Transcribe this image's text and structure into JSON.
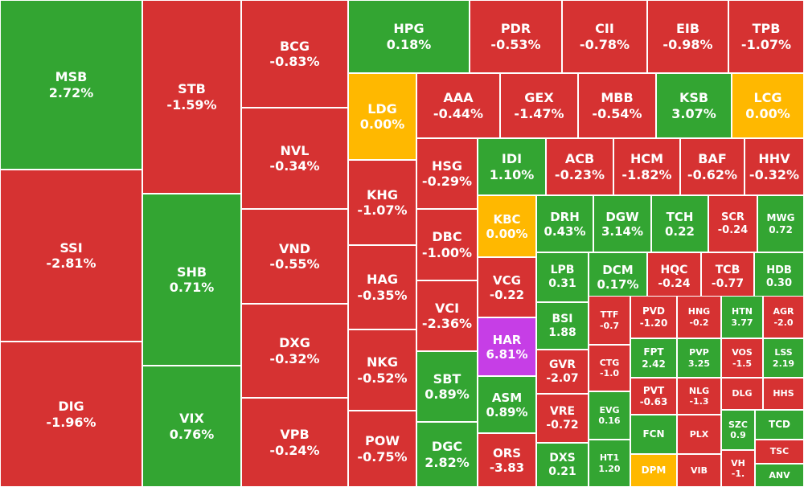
{
  "colors": {
    "up": "#33a532",
    "down": "#d63232",
    "flat": "#ffb800",
    "ceiling": "#c63ee6",
    "border": "#ffffff",
    "text": "#ffffff"
  },
  "chart_data": {
    "type": "treemap",
    "tiles": [
      {
        "ticker": "MSB",
        "change": "2.72%",
        "status": "up"
      },
      {
        "ticker": "SSI",
        "change": "-2.81%",
        "status": "down"
      },
      {
        "ticker": "DIG",
        "change": "-1.96%",
        "status": "down"
      },
      {
        "ticker": "STB",
        "change": "-1.59%",
        "status": "down"
      },
      {
        "ticker": "SHB",
        "change": "0.71%",
        "status": "up"
      },
      {
        "ticker": "VIX",
        "change": "0.76%",
        "status": "up"
      },
      {
        "ticker": "BCG",
        "change": "-0.83%",
        "status": "down"
      },
      {
        "ticker": "NVL",
        "change": "-0.34%",
        "status": "down"
      },
      {
        "ticker": "VND",
        "change": "-0.55%",
        "status": "down"
      },
      {
        "ticker": "DXG",
        "change": "-0.32%",
        "status": "down"
      },
      {
        "ticker": "VPB",
        "change": "-0.24%",
        "status": "down"
      },
      {
        "ticker": "HPG",
        "change": "0.18%",
        "status": "up"
      },
      {
        "ticker": "PDR",
        "change": "-0.53%",
        "status": "down"
      },
      {
        "ticker": "CII",
        "change": "-0.78%",
        "status": "down"
      },
      {
        "ticker": "EIB",
        "change": "-0.98%",
        "status": "down"
      },
      {
        "ticker": "TPB",
        "change": "-1.07%",
        "status": "down"
      },
      {
        "ticker": "LDG",
        "change": "0.00%",
        "status": "flat"
      },
      {
        "ticker": "KHG",
        "change": "-1.07%",
        "status": "down"
      },
      {
        "ticker": "HAG",
        "change": "-0.35%",
        "status": "down"
      },
      {
        "ticker": "NKG",
        "change": "-0.52%",
        "status": "down"
      },
      {
        "ticker": "POW",
        "change": "-0.75%",
        "status": "down"
      },
      {
        "ticker": "AAA",
        "change": "-0.44%",
        "status": "down"
      },
      {
        "ticker": "GEX",
        "change": "-1.47%",
        "status": "down"
      },
      {
        "ticker": "MBB",
        "change": "-0.54%",
        "status": "down"
      },
      {
        "ticker": "KSB",
        "change": "3.07%",
        "status": "up"
      },
      {
        "ticker": "LCG",
        "change": "0.00%",
        "status": "flat"
      },
      {
        "ticker": "HSG",
        "change": "-0.29%",
        "status": "down"
      },
      {
        "ticker": "DBC",
        "change": "-1.00%",
        "status": "down"
      },
      {
        "ticker": "VCI",
        "change": "-2.36%",
        "status": "down"
      },
      {
        "ticker": "SBT",
        "change": "0.89%",
        "status": "up"
      },
      {
        "ticker": "DGC",
        "change": "2.82%",
        "status": "up"
      },
      {
        "ticker": "IDI",
        "change": "1.10%",
        "status": "up"
      },
      {
        "ticker": "ACB",
        "change": "-0.23%",
        "status": "down"
      },
      {
        "ticker": "HCM",
        "change": "-1.82%",
        "status": "down"
      },
      {
        "ticker": "BAF",
        "change": "-0.62%",
        "status": "down"
      },
      {
        "ticker": "HHV",
        "change": "-0.32%",
        "status": "down"
      },
      {
        "ticker": "KBC",
        "change": "0.00%",
        "status": "flat"
      },
      {
        "ticker": "VCG",
        "change": "-0.22",
        "status": "down"
      },
      {
        "ticker": "HAR",
        "change": "6.81%",
        "status": "ceiling"
      },
      {
        "ticker": "ASM",
        "change": "0.89%",
        "status": "up"
      },
      {
        "ticker": "ORS",
        "change": "-3.83",
        "status": "down"
      },
      {
        "ticker": "DRH",
        "change": "0.43%",
        "status": "up"
      },
      {
        "ticker": "DGW",
        "change": "3.14%",
        "status": "up"
      },
      {
        "ticker": "TCH",
        "change": "0.22",
        "status": "up"
      },
      {
        "ticker": "SCR",
        "change": "-0.24",
        "status": "down"
      },
      {
        "ticker": "MWG",
        "change": "0.72",
        "status": "up"
      },
      {
        "ticker": "LPB",
        "change": "0.31",
        "status": "up"
      },
      {
        "ticker": "DCM",
        "change": "0.17%",
        "status": "up"
      },
      {
        "ticker": "HQC",
        "change": "-0.24",
        "status": "down"
      },
      {
        "ticker": "TCB",
        "change": "-0.77",
        "status": "down"
      },
      {
        "ticker": "HDB",
        "change": "0.30",
        "status": "up"
      },
      {
        "ticker": "BSI",
        "change": "1.88",
        "status": "up"
      },
      {
        "ticker": "GVR",
        "change": "-2.07",
        "status": "down"
      },
      {
        "ticker": "VRE",
        "change": "-0.72",
        "status": "down"
      },
      {
        "ticker": "DXS",
        "change": "0.21",
        "status": "up"
      },
      {
        "ticker": "TTF",
        "change": "-0.7",
        "status": "down"
      },
      {
        "ticker": "CTG",
        "change": "-1.0",
        "status": "down"
      },
      {
        "ticker": "EVG",
        "change": "0.16",
        "status": "up"
      },
      {
        "ticker": "HT1",
        "change": "1.20",
        "status": "up"
      },
      {
        "ticker": "PVD",
        "change": "-1.20",
        "status": "down"
      },
      {
        "ticker": "HNG",
        "change": "-0.2",
        "status": "down"
      },
      {
        "ticker": "HTN",
        "change": "3.77",
        "status": "up"
      },
      {
        "ticker": "AGR",
        "change": "-2.0",
        "status": "down"
      },
      {
        "ticker": "FPT",
        "change": "2.42",
        "status": "up"
      },
      {
        "ticker": "PVP",
        "change": "3.25",
        "status": "up"
      },
      {
        "ticker": "VOS",
        "change": "-1.5",
        "status": "down"
      },
      {
        "ticker": "LSS",
        "change": "2.19",
        "status": "up"
      },
      {
        "ticker": "PVT",
        "change": "-0.63",
        "status": "down"
      },
      {
        "ticker": "NLG",
        "change": "-1.3",
        "status": "down"
      },
      {
        "ticker": "DLG",
        "change": "",
        "status": "down"
      },
      {
        "ticker": "HHS",
        "change": "",
        "status": "down"
      },
      {
        "ticker": "FCN",
        "change": "",
        "status": "up"
      },
      {
        "ticker": "PLX",
        "change": "",
        "status": "down"
      },
      {
        "ticker": "SZC",
        "change": "0.9",
        "status": "up"
      },
      {
        "ticker": "TCD",
        "change": "",
        "status": "up"
      },
      {
        "ticker": "DPM",
        "change": "",
        "status": "flat"
      },
      {
        "ticker": "VIB",
        "change": "",
        "status": "down"
      },
      {
        "ticker": "VH",
        "change": "-1.",
        "status": "down"
      },
      {
        "ticker": "TSC",
        "change": "",
        "status": "down"
      },
      {
        "ticker": "ANV",
        "change": "",
        "status": "up"
      }
    ]
  }
}
